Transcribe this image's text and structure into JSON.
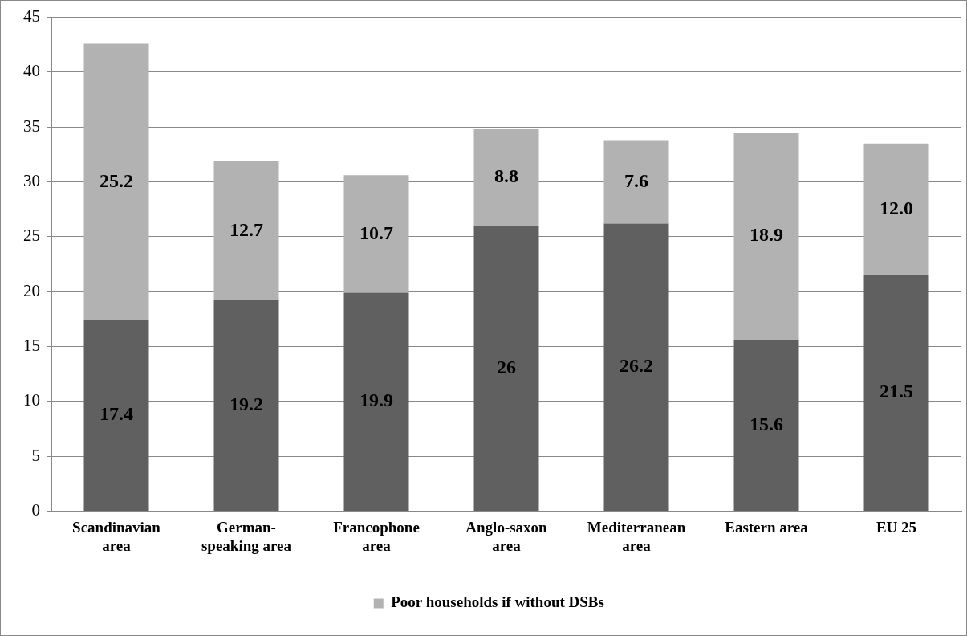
{
  "chart_data": {
    "type": "bar",
    "stacked": true,
    "categories": [
      "Scandinavian area",
      "German-speaking area",
      "Francophone area",
      "Anglo-saxon area",
      "Mediterranean area",
      "Eastern area",
      "EU 25"
    ],
    "series": [
      {
        "color": "#606060",
        "values": [
          17.4,
          19.2,
          19.9,
          26,
          26.2,
          15.6,
          21.5
        ],
        "value_labels": [
          "17.4",
          "19.2",
          "19.9",
          "26",
          "26.2",
          "15.6",
          "21.5"
        ]
      },
      {
        "name": "Poor households if without DSBs",
        "color": "#b2b2b2",
        "values": [
          25.2,
          12.7,
          10.7,
          8.8,
          7.6,
          18.9,
          12.0
        ],
        "value_labels": [
          "25.2",
          "12.7",
          "10.7",
          "8.8",
          "7.6",
          "18.9",
          "12.0"
        ]
      }
    ],
    "ylim": [
      0,
      45
    ],
    "yticks": [
      0,
      5,
      10,
      15,
      20,
      25,
      30,
      35,
      40,
      45
    ],
    "grid": "y",
    "legend": "bottom"
  }
}
